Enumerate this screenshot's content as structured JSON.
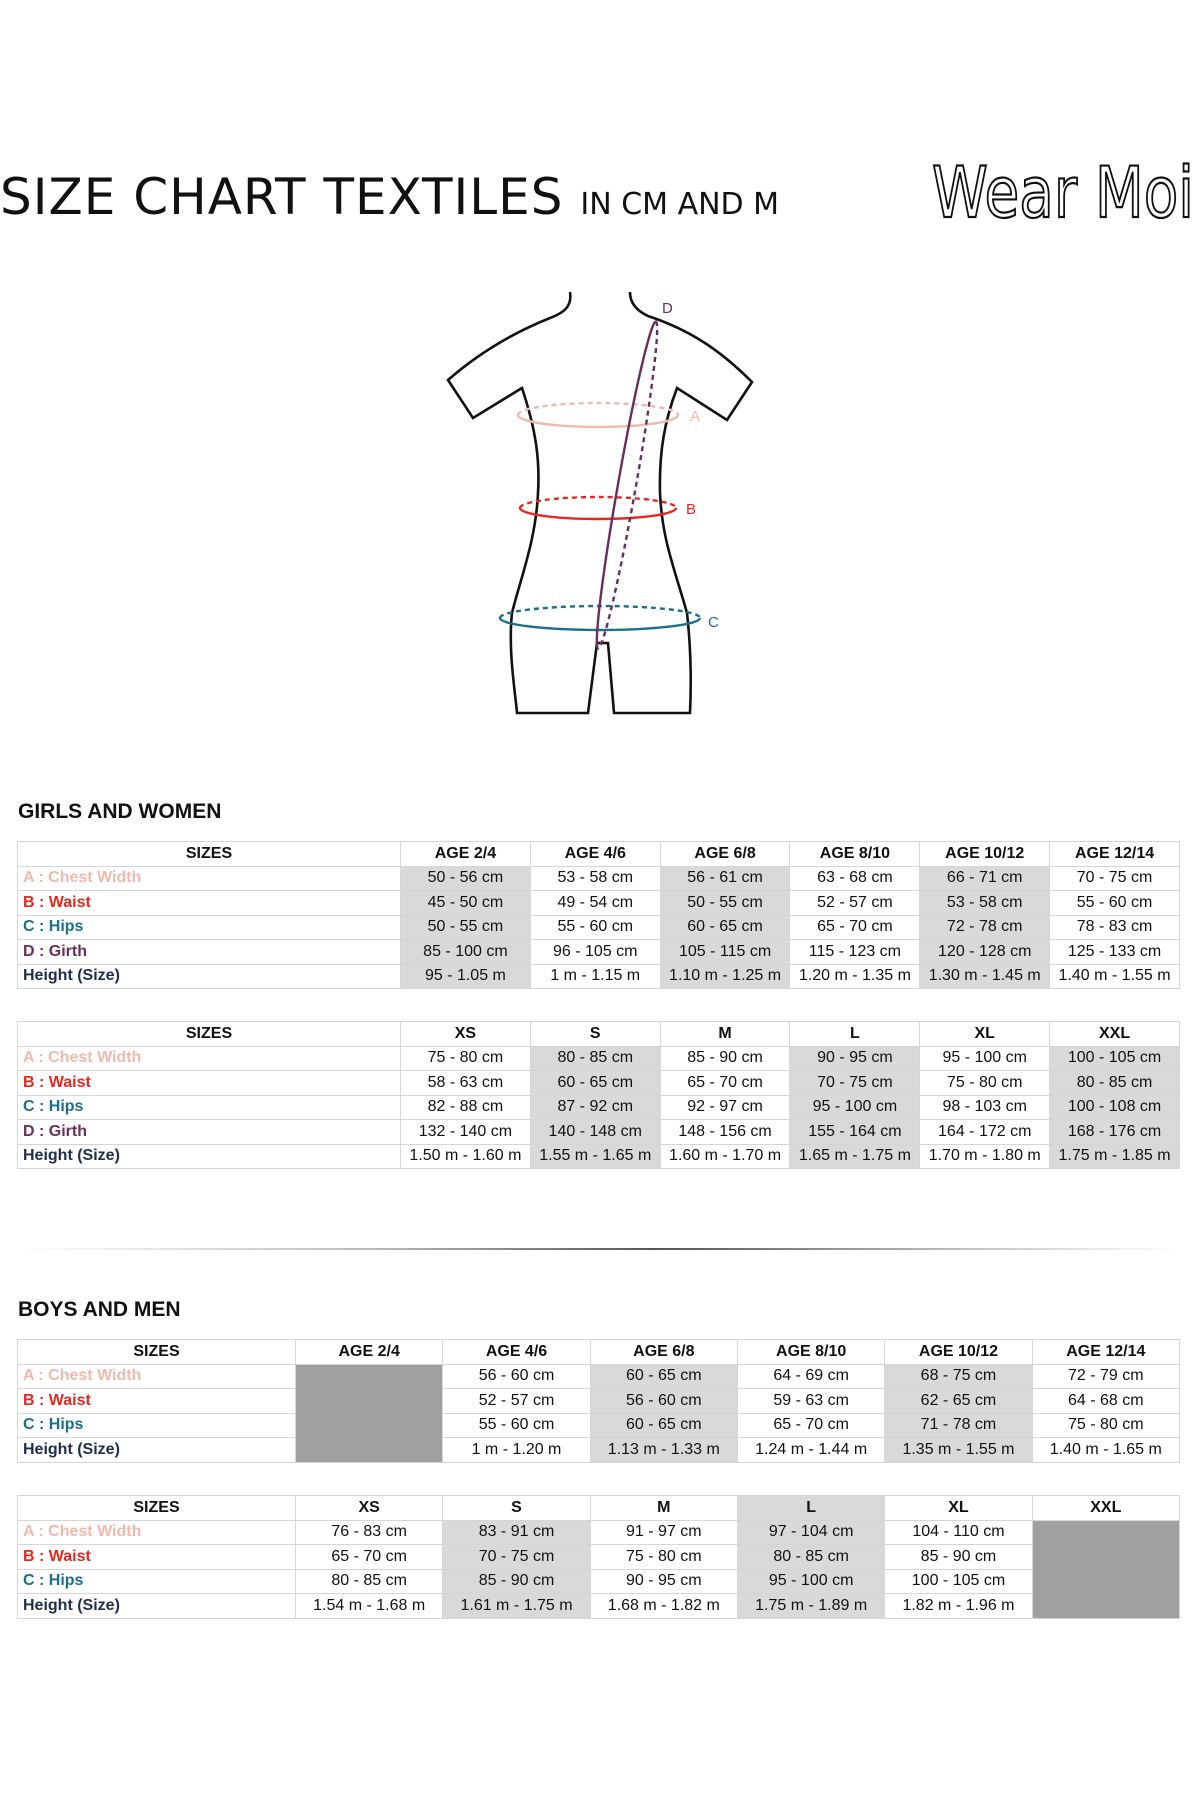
{
  "header": {
    "title": "SIZE CHART TEXTILES",
    "subtitle": "IN CM AND M",
    "logo_text": "Wear Moi"
  },
  "figure": {
    "labels": {
      "a": "A",
      "b": "B",
      "c": "C",
      "d": "D"
    }
  },
  "colors": {
    "chest": "#f0b9ad",
    "waist": "#e8281e",
    "hips": "#1a6e8e",
    "girth": "#6b2d5c",
    "height": "#1f2d4f",
    "shade": "#d9d9d9",
    "unavailable": "#a0a0a0"
  },
  "sections": [
    {
      "heading": "GIRLS AND WOMEN",
      "tables": [
        {
          "headers": [
            "SIZES",
            "AGE 2/4",
            "AGE 4/6",
            "AGE 6/8",
            "AGE 8/10",
            "AGE 10/12",
            "AGE 12/14"
          ],
          "shaded_columns": [
            1,
            3,
            5
          ],
          "shaded_header_columns": [],
          "unavailable_columns": [],
          "rows": [
            {
              "key": "chest",
              "label": "A : Chest Width",
              "values": [
                "50 - 56 cm",
                "53 - 58 cm",
                "56 - 61 cm",
                "63 - 68 cm",
                "66 - 71 cm",
                "70 - 75 cm"
              ]
            },
            {
              "key": "waist",
              "label": "B : Waist",
              "values": [
                "45 - 50 cm",
                "49  - 54 cm",
                "50 - 55 cm",
                "52 - 57 cm",
                "53 - 58 cm",
                "55 - 60 cm"
              ]
            },
            {
              "key": "hips",
              "label": "C : Hips",
              "values": [
                "50 - 55 cm",
                "55 - 60 cm",
                "60 - 65 cm",
                "65 - 70 cm",
                "72 - 78 cm",
                "78 - 83 cm"
              ]
            },
            {
              "key": "girth",
              "label": "D : Girth",
              "values": [
                "85 - 100 cm",
                "96 - 105 cm",
                "105 - 115  cm",
                "115 - 123 cm",
                "120 - 128 cm",
                "125 - 133 cm"
              ]
            },
            {
              "key": "height",
              "label": "Height (Size)",
              "values": [
                "95 - 1.05 m",
                "1 m - 1.15 m",
                "1.10 m - 1.25 m",
                "1.20 m - 1.35 m",
                "1.30 m - 1.45 m",
                "1.40 m - 1.55 m"
              ]
            }
          ]
        },
        {
          "headers": [
            "SIZES",
            "XS",
            "S",
            "M",
            "L",
            "XL",
            "XXL"
          ],
          "shaded_columns": [
            2,
            4,
            6
          ],
          "shaded_header_columns": [],
          "unavailable_columns": [],
          "rows": [
            {
              "key": "chest",
              "label": "A : Chest Width",
              "values": [
                "75 - 80 cm",
                "80 - 85 cm",
                "85 - 90 cm",
                "90 - 95 cm",
                "95 - 100 cm",
                "100 - 105 cm"
              ]
            },
            {
              "key": "waist",
              "label": "B : Waist",
              "values": [
                "58 - 63 cm",
                "60 - 65 cm",
                "65 - 70 cm",
                "70 - 75 cm",
                "75 - 80 cm",
                "80 - 85 cm"
              ]
            },
            {
              "key": "hips",
              "label": "C : Hips",
              "values": [
                "82 - 88 cm",
                "87 - 92 cm",
                "92 - 97 cm",
                "95 - 100 cm",
                "98 - 103 cm",
                "100 - 108 cm"
              ]
            },
            {
              "key": "girth",
              "label": "D : Girth",
              "values": [
                "132 - 140 cm",
                "140 - 148 cm",
                "148 - 156 cm",
                "155 - 164 cm",
                "164 - 172 cm",
                "168 - 176 cm"
              ]
            },
            {
              "key": "height",
              "label": "Height (Size)",
              "values": [
                "1.50 m - 1.60 m",
                "1.55 m - 1.65 m",
                "1.60 m - 1.70 m",
                "1.65 m - 1.75 m",
                "1.70 m - 1.80 m",
                "1.75 m - 1.85 m"
              ]
            }
          ]
        }
      ]
    },
    {
      "heading": "BOYS AND MEN",
      "tables": [
        {
          "headers": [
            "SIZES",
            "AGE 2/4",
            "AGE 4/6",
            "AGE 6/8",
            "AGE 8/10",
            "AGE 10/12",
            "AGE 12/14"
          ],
          "shaded_columns": [
            3,
            5
          ],
          "shaded_header_columns": [],
          "unavailable_columns": [
            1
          ],
          "rows": [
            {
              "key": "chest",
              "label": "A : Chest Width",
              "values": [
                "",
                "56 - 60 cm",
                "60 - 65 cm",
                "64 - 69 cm",
                "68 - 75 cm",
                "72 - 79 cm"
              ]
            },
            {
              "key": "waist",
              "label": "B : Waist",
              "values": [
                "",
                "52  - 57 cm",
                "56 - 60 cm",
                "59 - 63 cm",
                "62 - 65 cm",
                "64 - 68 cm"
              ]
            },
            {
              "key": "hips",
              "label": "C : Hips",
              "values": [
                "",
                "55 - 60 cm",
                "60 - 65 cm",
                "65 - 70 cm",
                "71 - 78 cm",
                "75 - 80 cm"
              ]
            },
            {
              "key": "height",
              "label": "Height (Size)",
              "values": [
                "",
                "1 m - 1.20 m",
                "1.13 m - 1.33 m",
                "1.24 m - 1.44 m",
                "1.35 m - 1.55 m",
                "1.40 m - 1.65 m"
              ]
            }
          ]
        },
        {
          "headers": [
            "SIZES",
            "XS",
            "S",
            "M",
            "L",
            "XL",
            "XXL"
          ],
          "shaded_columns": [
            2,
            4
          ],
          "shaded_header_columns": [
            4
          ],
          "unavailable_columns": [
            6
          ],
          "rows": [
            {
              "key": "chest",
              "label": "A : Chest Width",
              "values": [
                "76 - 83 cm",
                "83 - 91 cm",
                "91 - 97 cm",
                "97 - 104 cm",
                "104 - 110 cm",
                ""
              ]
            },
            {
              "key": "waist",
              "label": "B : Waist",
              "values": [
                "65 - 70 cm",
                "70 - 75 cm",
                "75 - 80 cm",
                "80 - 85 cm",
                "85 - 90 cm",
                ""
              ]
            },
            {
              "key": "hips",
              "label": "C : Hips",
              "values": [
                "80 - 85 cm",
                "85 - 90 cm",
                "90 - 95 cm",
                "95 - 100 cm",
                "100 - 105 cm",
                ""
              ]
            },
            {
              "key": "height",
              "label": "Height (Size)",
              "values": [
                "1.54 m - 1.68 m",
                "1.61 m - 1.75 m",
                "1.68 m - 1.82 m",
                "1.75 m - 1.89 m",
                "1.82 m - 1.96 m",
                ""
              ]
            }
          ]
        }
      ]
    }
  ]
}
